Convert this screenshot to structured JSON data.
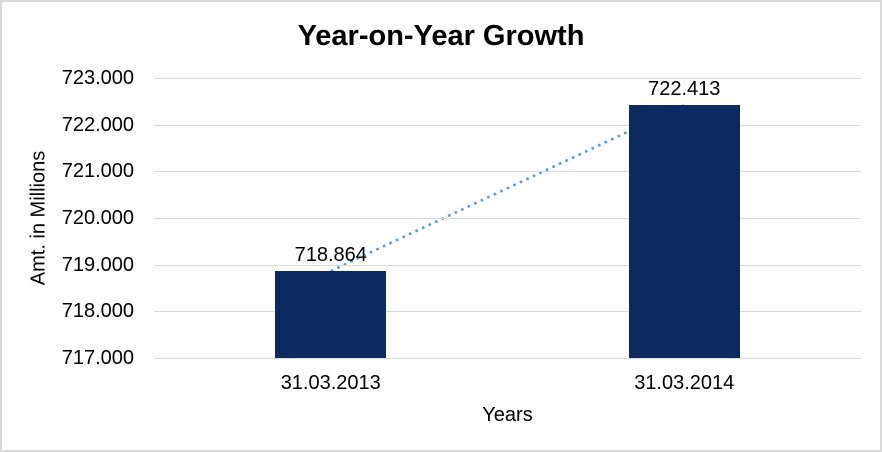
{
  "chart_data": {
    "type": "bar",
    "title": "Year-on-Year Growth",
    "xlabel": "Years",
    "ylabel": "Amt. in Millions",
    "categories": [
      "31.03.2013",
      "31.03.2014"
    ],
    "values": [
      718.864,
      722.413
    ],
    "data_labels": [
      "718.864",
      "722.413"
    ],
    "ylim": [
      717,
      723
    ],
    "y_ticks": [
      {
        "value": 717,
        "label": "717.000"
      },
      {
        "value": 718,
        "label": "718.000"
      },
      {
        "value": 719,
        "label": "719.000"
      },
      {
        "value": 720,
        "label": "720.000"
      },
      {
        "value": 721,
        "label": "721.000"
      },
      {
        "value": 722,
        "label": "722.000"
      },
      {
        "value": 723,
        "label": "723.000"
      }
    ],
    "grid": true,
    "legend": false,
    "trendline": {
      "style": "dotted",
      "from_category": 0,
      "to_category": 1
    },
    "colors": {
      "bar": "#0b2a60",
      "trendline": "#5b9bd5",
      "gridline": "#d9d9d9",
      "text": "#000000",
      "border": "#d9d9d9",
      "background": "#ffffff"
    }
  }
}
